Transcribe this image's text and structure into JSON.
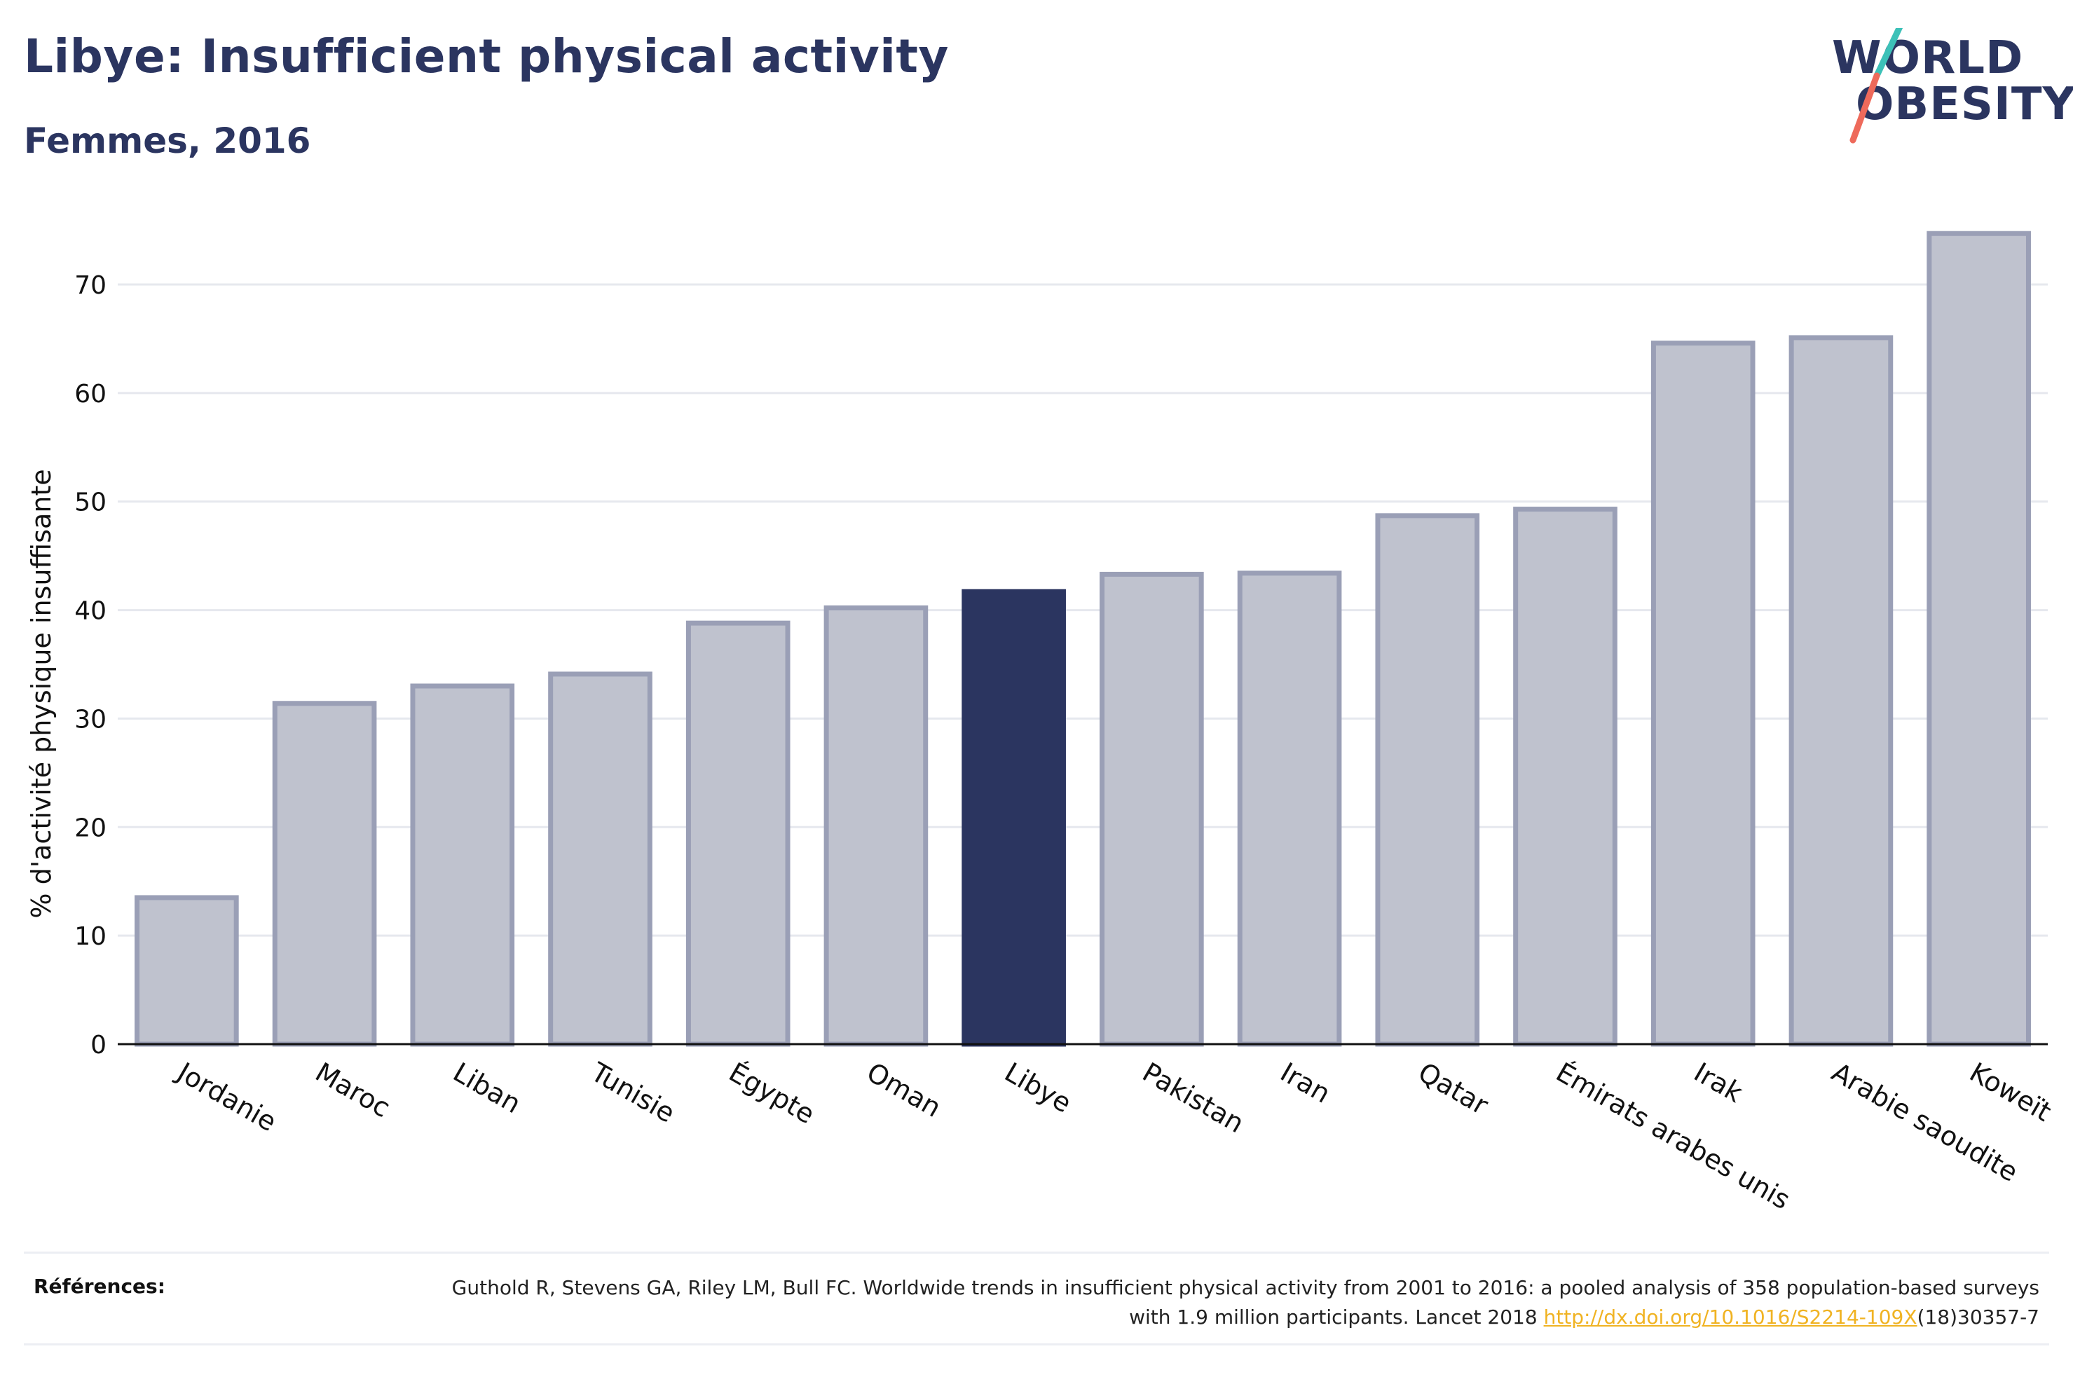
{
  "header": {
    "title": "Libye: Insufficient physical activity",
    "subtitle": "Femmes, 2016"
  },
  "logo": {
    "line1": "WORLD",
    "line2": "OBESITY",
    "colors": {
      "text": "#2b3560",
      "slash_top": "#3cc1b8",
      "slash_bottom": "#ee6a5b"
    }
  },
  "chart_data": {
    "type": "bar",
    "ylabel": "% d'activité physique insuffisante",
    "xlabel": "",
    "ylim": [
      0,
      75
    ],
    "yticks": [
      0,
      10,
      20,
      30,
      40,
      50,
      60,
      70
    ],
    "grid": true,
    "categories": [
      "Jordanie",
      "Maroc",
      "Liban",
      "Tunisie",
      "Égypte",
      "Oman",
      "Libye",
      "Pakistan",
      "Iran",
      "Qatar",
      "Émirats arabes unis",
      "Irak",
      "Arabie saoudite",
      "Koweït"
    ],
    "values": [
      13.5,
      31.4,
      33.0,
      34.1,
      38.8,
      40.2,
      41.7,
      43.3,
      43.4,
      48.7,
      49.3,
      64.6,
      65.1,
      74.7
    ],
    "highlight": "Libye",
    "colors": {
      "bar": "#bfc2ce",
      "bar_border": "#9a9fb6",
      "highlight": "#2b3560"
    }
  },
  "references": {
    "label": "Références:",
    "text_before_link": "Guthold R, Stevens GA, Riley LM, Bull FC. Worldwide trends in insufficient physical activity from 2001 to 2016: a pooled analysis of 358 population-based surveys with 1.9 million participants. Lancet 2018 ",
    "link": "http://dx.doi.org/10.1016/S2214-109X",
    "text_after_link": "(18)30357-7"
  }
}
